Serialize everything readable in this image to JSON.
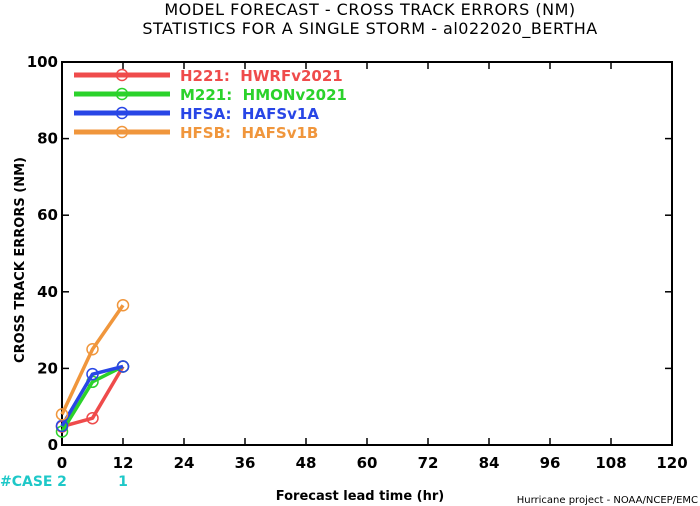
{
  "title_line1": "MODEL FORECAST - CROSS TRACK ERRORS (NM)",
  "title_line2": "STATISTICS FOR A SINGLE STORM - al022020_BERTHA",
  "credit": "Hurricane project - NOAA/NCEP/EMC",
  "case_label": "#CASE",
  "colors": {
    "case": "#1ec8c8"
  },
  "chart_data": {
    "type": "line",
    "xlabel": "Forecast lead time (hr)",
    "ylabel": "CROSS TRACK ERRORS (NM)",
    "xlim": [
      0,
      120
    ],
    "ylim": [
      0,
      100
    ],
    "x_ticks": [
      0,
      12,
      24,
      36,
      48,
      60,
      72,
      84,
      96,
      108,
      120
    ],
    "y_ticks": [
      0,
      20,
      40,
      60,
      80,
      100
    ],
    "grid": false,
    "legend_position": "top-left",
    "series": [
      {
        "name": "H221:  HWRFv2021",
        "color": "#ef4b4b",
        "x": [
          0,
          6,
          12
        ],
        "y": [
          4.8,
          7.0,
          20.5
        ]
      },
      {
        "name": "M221:  HMONv2021",
        "color": "#2bd22b",
        "x": [
          0,
          6,
          12
        ],
        "y": [
          3.5,
          16.5,
          20.5
        ]
      },
      {
        "name": "HFSA:  HAFSv1A",
        "color": "#2846e6",
        "x": [
          0,
          6,
          12
        ],
        "y": [
          5.0,
          18.5,
          20.5
        ]
      },
      {
        "name": "HFSB:  HAFSv1B",
        "color": "#f0963c",
        "x": [
          0,
          6,
          12
        ],
        "y": [
          8.0,
          25.0,
          36.5
        ]
      }
    ],
    "case_counts": [
      {
        "x": 0,
        "label": "2"
      },
      {
        "x": 12,
        "label": "1"
      }
    ]
  }
}
